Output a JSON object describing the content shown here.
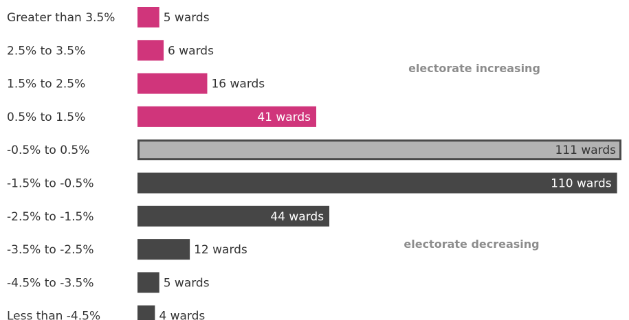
{
  "chart_data": {
    "type": "bar",
    "orientation": "horizontal",
    "categories": [
      "Greater than 3.5%",
      "2.5% to 3.5%",
      "1.5% to 2.5%",
      "0.5% to 1.5%",
      "-0.5% to 0.5%",
      "-1.5% to -0.5%",
      "-2.5% to -1.5%",
      "-3.5% to -2.5%",
      "-4.5% to -3.5%",
      "Less than -4.5%"
    ],
    "values": [
      5,
      6,
      16,
      41,
      111,
      110,
      44,
      12,
      5,
      4
    ],
    "value_labels": [
      "5 wards",
      "6 wards",
      "16 wards",
      "41 wards",
      "111 wards",
      "110 wards",
      "44 wards",
      "12 wards",
      "5 wards",
      "4 wards"
    ],
    "groups": [
      "increase",
      "increase",
      "increase",
      "increase",
      "neutral",
      "decrease",
      "decrease",
      "decrease",
      "decrease",
      "decrease"
    ],
    "colors": {
      "increase": "#d0357b",
      "neutral": "#b3b3b3",
      "neutral_border": "#4a4a4a",
      "decrease": "#464646",
      "annotation": "#8c8c8c"
    },
    "annotations": [
      "electorate increasing",
      "electorate decreasing"
    ],
    "title": "",
    "xlabel": "",
    "ylabel": "",
    "xlim": [
      0,
      111
    ],
    "grid": false
  }
}
